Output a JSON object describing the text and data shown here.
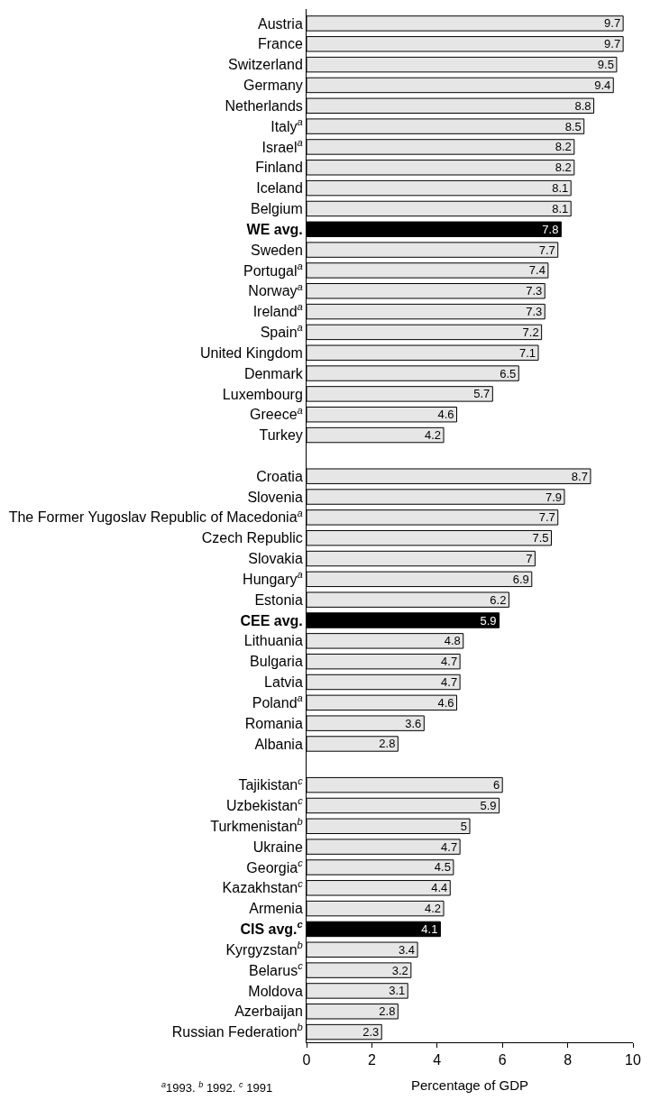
{
  "chart_data": {
    "type": "bar",
    "orientation": "horizontal",
    "categories": [
      "Austria",
      "France",
      "Switzerland",
      "Germany",
      "Netherlands",
      "Italy$^{a}$",
      "Israel$^{a}$",
      "Finland",
      "Iceland",
      "Belgium",
      "WE avg.",
      "Sweden",
      "Portugal$^{a}$",
      "Norway$^{a}$",
      "Ireland$^{a}$",
      "Spain$^{a}$",
      "United Kingdom",
      "Denmark",
      "Luxembourg",
      "Greece$^{a}$",
      "Turkey",
      null,
      "Croatia",
      "Slovenia",
      "The Former Yugoslav Republic of Macedonia$^{a}$",
      "Czech Republic",
      "Slovakia",
      "Hungary$^{a}$",
      "Estonia",
      "CEE avg.",
      "Lithuania",
      "Bulgaria",
      "Latvia",
      "Poland$^{a}$",
      "Romania",
      "Albania",
      null,
      "Tajikistan$^{c}$",
      "Uzbekistan$^{c}$",
      "Turkmenistan$^{b}$",
      "Ukraine",
      "Georgia$^{c}$",
      "Kazakhstan$^{c}$",
      "Armenia",
      "CIS avg.$^{c}$",
      "Kyrgyzstan$^{b}$",
      "Belarus$^{c}$",
      "Moldova",
      "Azerbaijan",
      "Russian Federation$^{b}$"
    ],
    "values": [
      9.7,
      9.7,
      9.5,
      9.4,
      8.8,
      8.5,
      8.2,
      8.2,
      8.1,
      8.1,
      7.8,
      7.7,
      7.4,
      7.3,
      7.3,
      7.2,
      7.1,
      6.5,
      5.7,
      4.6,
      4.2,
      null,
      8.7,
      7.9,
      7.7,
      7.5,
      7,
      6.9,
      6.2,
      5.9,
      4.8,
      4.7,
      4.7,
      4.6,
      3.6,
      2.8,
      null,
      6,
      5.9,
      5,
      4.7,
      4.5,
      4.4,
      4.2,
      4.1,
      3.4,
      3.2,
      3.1,
      2.8,
      2.3
    ],
    "colors": [
      "#e6e6e6",
      "#e6e6e6",
      "#e6e6e6",
      "#e6e6e6",
      "#e6e6e6",
      "#e6e6e6",
      "#e6e6e6",
      "#e6e6e6",
      "#e6e6e6",
      "#e6e6e6",
      "#000000",
      "#e6e6e6",
      "#e6e6e6",
      "#e6e6e6",
      "#e6e6e6",
      "#e6e6e6",
      "#e6e6e6",
      "#e6e6e6",
      "#e6e6e6",
      "#e6e6e6",
      "#e6e6e6",
      null,
      "#e6e6e6",
      "#e6e6e6",
      "#e6e6e6",
      "#e6e6e6",
      "#e6e6e6",
      "#e6e6e6",
      "#e6e6e6",
      "#000000",
      "#e6e6e6",
      "#e6e6e6",
      "#e6e6e6",
      "#e6e6e6",
      "#e6e6e6",
      "#e6e6e6",
      null,
      "#e6e6e6",
      "#e6e6e6",
      "#e6e6e6",
      "#e6e6e6",
      "#e6e6e6",
      "#e6e6e6",
      "#e6e6e6",
      "#000000",
      "#e6e6e6",
      "#e6e6e6",
      "#e6e6e6",
      "#e6e6e6",
      "#e6e6e6"
    ],
    "xlim": [
      0,
      10
    ],
    "xticks": [
      0,
      2,
      4,
      6,
      8,
      10
    ],
    "xlabel": "Percentage of GDP",
    "data_labels": true,
    "legend": false,
    "annotations": [
      "$^{a}$1993. $^{b}$ 1992. $^{c}$ 1991"
    ]
  }
}
